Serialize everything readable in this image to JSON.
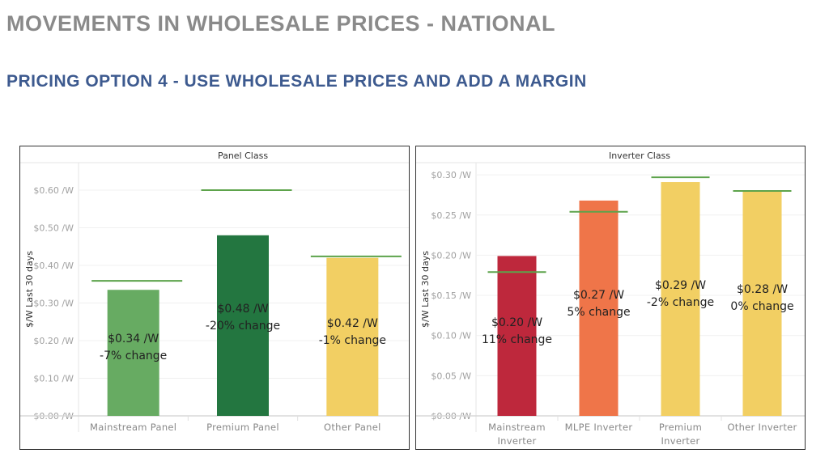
{
  "header": {
    "title": "MOVEMENTS IN WHOLESALE PRICES - NATIONAL",
    "subtitle": "PRICING OPTION 4 - USE WHOLESALE PRICES AND ADD A MARGIN"
  },
  "chart_data": [
    {
      "type": "bar",
      "title": "Panel Class",
      "xlabel": "",
      "ylabel": "$/W Last 30 days",
      "ylim": [
        0,
        0.65
      ],
      "yticks": [
        0,
        0.1,
        0.2,
        0.3,
        0.4,
        0.5,
        0.6
      ],
      "ytick_labels": [
        "$0.00 /W",
        "$0.10 /W",
        "$0.20 /W",
        "$0.30 /W",
        "$0.40 /W",
        "$0.50 /W",
        "$0.60 /W"
      ],
      "grid": true,
      "categories": [
        "Mainstream Panel",
        "Premium Panel",
        "Other Panel"
      ],
      "values": [
        0.335,
        0.48,
        0.42
      ],
      "reference_values": [
        0.359,
        0.6,
        0.424
      ],
      "bar_colors": [
        "#67ab62",
        "#237640",
        "#f2cf63"
      ],
      "reference_color": "#5da34b",
      "data_labels": [
        {
          "price": "$0.34 /W",
          "change": "-7% change"
        },
        {
          "price": "$0.48 /W",
          "change": "-20% change"
        },
        {
          "price": "$0.42 /W",
          "change": "-1% change"
        }
      ]
    },
    {
      "type": "bar",
      "title": "Inverter Class",
      "xlabel": "",
      "ylabel": "$/W Last 30 days",
      "ylim": [
        0,
        0.3
      ],
      "yticks": [
        0,
        0.05,
        0.1,
        0.15,
        0.2,
        0.25,
        0.3
      ],
      "ytick_labels": [
        "$0.00 /W",
        "$0.05 /W",
        "$0.10 /W",
        "$0.15 /W",
        "$0.20 /W",
        "$0.25 /W",
        "$0.30 /W"
      ],
      "grid": true,
      "categories": [
        [
          "Mainstream",
          "Inverter"
        ],
        [
          "MLPE Inverter"
        ],
        [
          "Premium",
          "Inverter"
        ],
        [
          "Other Inverter"
        ]
      ],
      "values": [
        0.199,
        0.268,
        0.291,
        0.28
      ],
      "reference_values": [
        0.179,
        0.254,
        0.297,
        0.28
      ],
      "bar_colors": [
        "#be283c",
        "#ef7549",
        "#f2cf63",
        "#f2cf63"
      ],
      "reference_color": "#5da34b",
      "data_labels": [
        {
          "price": "$0.20 /W",
          "change": "11% change"
        },
        {
          "price": "$0.27 /W",
          "change": "5% change"
        },
        {
          "price": "$0.29 /W",
          "change": "-2% change"
        },
        {
          "price": "$0.28 /W",
          "change": "0% change"
        }
      ]
    }
  ]
}
